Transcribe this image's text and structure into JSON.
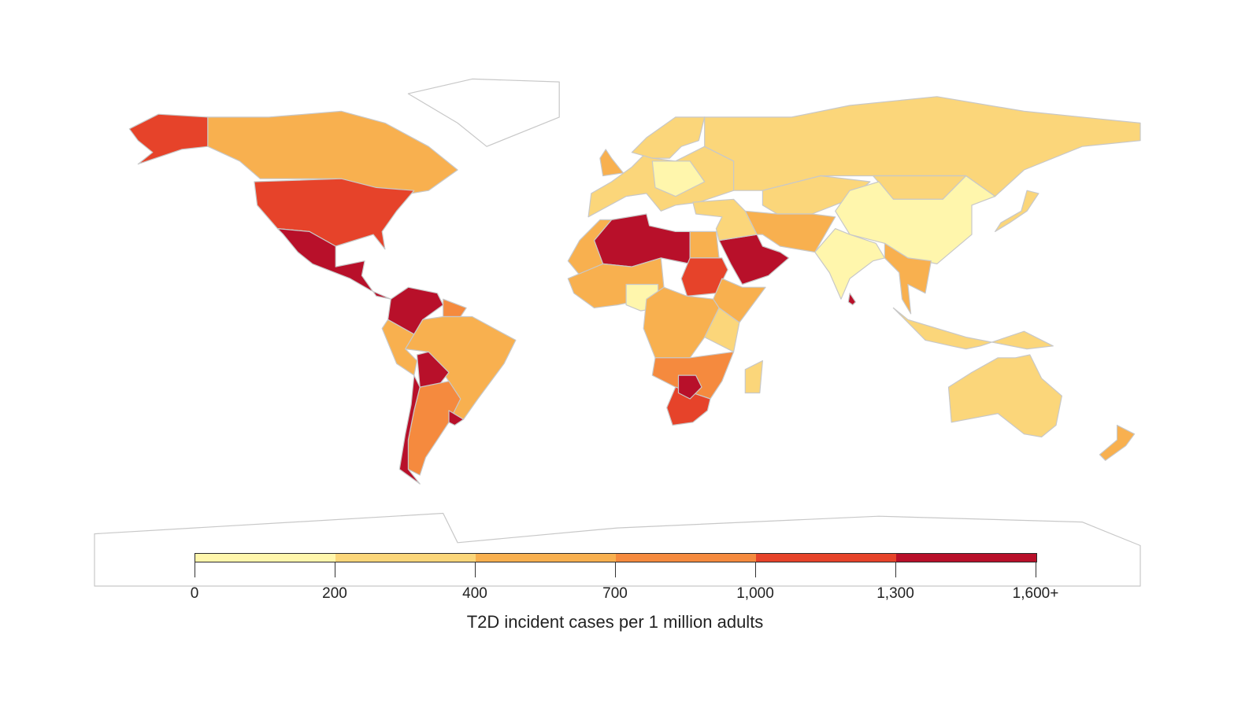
{
  "chart_data": {
    "type": "choropleth",
    "title": "",
    "legend_title": "T2D incident cases per 1 million adults",
    "bins": [
      {
        "range": "0-200",
        "color": "#FFF6AC"
      },
      {
        "range": "200-400",
        "color": "#FBD67A"
      },
      {
        "range": "400-700",
        "color": "#F8B04F"
      },
      {
        "range": "700-1,000",
        "color": "#F58A3E"
      },
      {
        "range": "1,000-1,300",
        "color": "#E6432A"
      },
      {
        "range": "1,300-1,600+",
        "color": "#B8102A"
      }
    ],
    "tick_labels": [
      "0",
      "200",
      "400",
      "700",
      "1,000",
      "1,300",
      "1,600+"
    ],
    "no_data_color": "#FFFFFF",
    "regions": [
      {
        "name": "Alaska (USA)",
        "bin": 4
      },
      {
        "name": "Canada",
        "bin": 2
      },
      {
        "name": "Greenland",
        "bin": null
      },
      {
        "name": "United States",
        "bin": 4
      },
      {
        "name": "Mexico & Central America",
        "bin": 5
      },
      {
        "name": "Colombia & Venezuela",
        "bin": 5
      },
      {
        "name": "Guianas",
        "bin": 3
      },
      {
        "name": "Brazil",
        "bin": 2
      },
      {
        "name": "Peru & Ecuador",
        "bin": 2
      },
      {
        "name": "Bolivia",
        "bin": 5
      },
      {
        "name": "Argentina",
        "bin": 3
      },
      {
        "name": "Chile",
        "bin": 5
      },
      {
        "name": "Uruguay",
        "bin": 5
      },
      {
        "name": "Western Europe",
        "bin": 1
      },
      {
        "name": "Scandinavia",
        "bin": 1
      },
      {
        "name": "United Kingdom",
        "bin": 2
      },
      {
        "name": "Central & Eastern Europe",
        "bin": 0
      },
      {
        "name": "Russia",
        "bin": 1
      },
      {
        "name": "Central Asia",
        "bin": 1
      },
      {
        "name": "Mongolia",
        "bin": 1
      },
      {
        "name": "China",
        "bin": 0
      },
      {
        "name": "India",
        "bin": 0
      },
      {
        "name": "Southeast Asia",
        "bin": 2
      },
      {
        "name": "Iran, Afghanistan & Pakistan",
        "bin": 2
      },
      {
        "name": "Arabian Peninsula",
        "bin": 5
      },
      {
        "name": "Turkey & Levant",
        "bin": 1
      },
      {
        "name": "Algeria & Libya",
        "bin": 5
      },
      {
        "name": "Morocco & Mauritania",
        "bin": 2
      },
      {
        "name": "Egypt",
        "bin": 2
      },
      {
        "name": "Sudan",
        "bin": 4
      },
      {
        "name": "West Africa",
        "bin": 2
      },
      {
        "name": "Nigeria region",
        "bin": 0
      },
      {
        "name": "Horn of Africa",
        "bin": 2
      },
      {
        "name": "Central Africa",
        "bin": 2
      },
      {
        "name": "East Africa",
        "bin": 1
      },
      {
        "name": "Southern-central Africa",
        "bin": 3
      },
      {
        "name": "South Africa",
        "bin": 4
      },
      {
        "name": "Botswana",
        "bin": 5
      },
      {
        "name": "Madagascar",
        "bin": 1
      },
      {
        "name": "Australia",
        "bin": 1
      },
      {
        "name": "Indonesia",
        "bin": 1
      },
      {
        "name": "Japan",
        "bin": 1
      },
      {
        "name": "New Zealand",
        "bin": 2
      },
      {
        "name": "Sri Lanka",
        "bin": 5
      },
      {
        "name": "Antarctica",
        "bin": null
      }
    ]
  }
}
